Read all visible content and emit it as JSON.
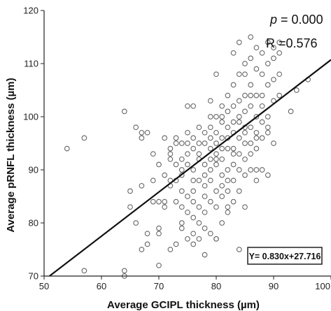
{
  "chart_data": {
    "type": "scatter",
    "xlabel": "Average GCIPL thickness (µm)",
    "ylabel": "Average pRNFL thickness (µm)",
    "xlim": [
      50,
      100
    ],
    "ylim": [
      70,
      120
    ],
    "xticks": [
      "50",
      "60",
      "70",
      "80",
      "90",
      "100"
    ],
    "yticks": [
      "70",
      "80",
      "90",
      "100",
      "110",
      "120"
    ],
    "grid": false,
    "marker_color": "#666666",
    "line_color": "#111111",
    "annotations": {
      "p_symbol": "p",
      "p_value": " = 0.000",
      "r_value": "R =0.576",
      "equation": "Y= 0.830x+27.716"
    },
    "fit_line": {
      "slope": 0.83,
      "intercept": 27.716
    },
    "points": [
      [
        54,
        94
      ],
      [
        57,
        96
      ],
      [
        57,
        71
      ],
      [
        64,
        101
      ],
      [
        64,
        70
      ],
      [
        64,
        71
      ],
      [
        65,
        83
      ],
      [
        65,
        86
      ],
      [
        66,
        98
      ],
      [
        66,
        80
      ],
      [
        67,
        97
      ],
      [
        67,
        96
      ],
      [
        67,
        87
      ],
      [
        67,
        75
      ],
      [
        68,
        78
      ],
      [
        68,
        76
      ],
      [
        69,
        84
      ],
      [
        69,
        88
      ],
      [
        70,
        91
      ],
      [
        70,
        84
      ],
      [
        70,
        79
      ],
      [
        70,
        78
      ],
      [
        71,
        96
      ],
      [
        71,
        84
      ],
      [
        71,
        83
      ],
      [
        72,
        94
      ],
      [
        72,
        93
      ],
      [
        72,
        92
      ],
      [
        72,
        88
      ],
      [
        72,
        75
      ],
      [
        73,
        96
      ],
      [
        73,
        95
      ],
      [
        73,
        91
      ],
      [
        73,
        84
      ],
      [
        73,
        76
      ],
      [
        74,
        95
      ],
      [
        74,
        90
      ],
      [
        74,
        89
      ],
      [
        74,
        86
      ],
      [
        74,
        83
      ],
      [
        74,
        80
      ],
      [
        74,
        79
      ],
      [
        75,
        102
      ],
      [
        75,
        97
      ],
      [
        75,
        95
      ],
      [
        75,
        93
      ],
      [
        75,
        85
      ],
      [
        75,
        82
      ],
      [
        75,
        77
      ],
      [
        76,
        102
      ],
      [
        76,
        96
      ],
      [
        76,
        94
      ],
      [
        76,
        90
      ],
      [
        76,
        86
      ],
      [
        76,
        84
      ],
      [
        76,
        81
      ],
      [
        76,
        78
      ],
      [
        76,
        76
      ],
      [
        77,
        98
      ],
      [
        77,
        93
      ],
      [
        77,
        92
      ],
      [
        77,
        88
      ],
      [
        77,
        83
      ],
      [
        77,
        80
      ],
      [
        77,
        77
      ],
      [
        78,
        95
      ],
      [
        78,
        91
      ],
      [
        78,
        89
      ],
      [
        78,
        87
      ],
      [
        78,
        85
      ],
      [
        78,
        82
      ],
      [
        78,
        79
      ],
      [
        79,
        103
      ],
      [
        79,
        98
      ],
      [
        79,
        96
      ],
      [
        79,
        94
      ],
      [
        79,
        92
      ],
      [
        79,
        90
      ],
      [
        79,
        88
      ],
      [
        79,
        84
      ],
      [
        80,
        108
      ],
      [
        80,
        100
      ],
      [
        80,
        97
      ],
      [
        80,
        95
      ],
      [
        80,
        93
      ],
      [
        80,
        91
      ],
      [
        80,
        86
      ],
      [
        80,
        83
      ],
      [
        80,
        77
      ],
      [
        81,
        99
      ],
      [
        81,
        96
      ],
      [
        81,
        94
      ],
      [
        81,
        92
      ],
      [
        81,
        89
      ],
      [
        81,
        87
      ],
      [
        81,
        85
      ],
      [
        81,
        80
      ],
      [
        82,
        104
      ],
      [
        82,
        101
      ],
      [
        82,
        98
      ],
      [
        82,
        96
      ],
      [
        82,
        94
      ],
      [
        82,
        90
      ],
      [
        82,
        88
      ],
      [
        82,
        86
      ],
      [
        82,
        82
      ],
      [
        83,
        106
      ],
      [
        83,
        102
      ],
      [
        83,
        99
      ],
      [
        83,
        97
      ],
      [
        83,
        94
      ],
      [
        83,
        91
      ],
      [
        83,
        88
      ],
      [
        83,
        84
      ],
      [
        84,
        114
      ],
      [
        84,
        108
      ],
      [
        84,
        103
      ],
      [
        84,
        99
      ],
      [
        84,
        96
      ],
      [
        84,
        93
      ],
      [
        84,
        90
      ],
      [
        84,
        86
      ],
      [
        84,
        75
      ],
      [
        85,
        110
      ],
      [
        85,
        104
      ],
      [
        85,
        101
      ],
      [
        85,
        98
      ],
      [
        85,
        95
      ],
      [
        85,
        92
      ],
      [
        85,
        89
      ],
      [
        85,
        83
      ],
      [
        86,
        115
      ],
      [
        86,
        111
      ],
      [
        86,
        106
      ],
      [
        86,
        102
      ],
      [
        86,
        98
      ],
      [
        86,
        95
      ],
      [
        86,
        93
      ],
      [
        86,
        90
      ],
      [
        87,
        113
      ],
      [
        87,
        109
      ],
      [
        87,
        104
      ],
      [
        87,
        100
      ],
      [
        87,
        97
      ],
      [
        87,
        94
      ],
      [
        87,
        90
      ],
      [
        87,
        88
      ],
      [
        88,
        112
      ],
      [
        88,
        108
      ],
      [
        88,
        104
      ],
      [
        88,
        99
      ],
      [
        88,
        96
      ],
      [
        88,
        90
      ],
      [
        89,
        114
      ],
      [
        89,
        110
      ],
      [
        89,
        106
      ],
      [
        89,
        100
      ],
      [
        89,
        97
      ],
      [
        89,
        89
      ],
      [
        90,
        113
      ],
      [
        90,
        111
      ],
      [
        90,
        107
      ],
      [
        90,
        103
      ],
      [
        90,
        95
      ],
      [
        91,
        114
      ],
      [
        91,
        112
      ],
      [
        91,
        108
      ],
      [
        91,
        104
      ],
      [
        93,
        101
      ],
      [
        94,
        105
      ],
      [
        96,
        107
      ],
      [
        78,
        74
      ],
      [
        79,
        78
      ],
      [
        80,
        77
      ],
      [
        81,
        100
      ],
      [
        83,
        112
      ],
      [
        85,
        97
      ],
      [
        72,
        87
      ],
      [
        70,
        72
      ],
      [
        68,
        97
      ],
      [
        73,
        88
      ],
      [
        75,
        91
      ],
      [
        77,
        95
      ],
      [
        79,
        100
      ],
      [
        81,
        102
      ],
      [
        83,
        93
      ],
      [
        85,
        108
      ],
      [
        87,
        96
      ],
      [
        89,
        98
      ],
      [
        76,
        88
      ],
      [
        78,
        97
      ],
      [
        80,
        92
      ],
      [
        82,
        83
      ],
      [
        84,
        100
      ],
      [
        86,
        104
      ],
      [
        88,
        102
      ],
      [
        74,
        92
      ],
      [
        71,
        89
      ],
      [
        69,
        93
      ]
    ]
  }
}
